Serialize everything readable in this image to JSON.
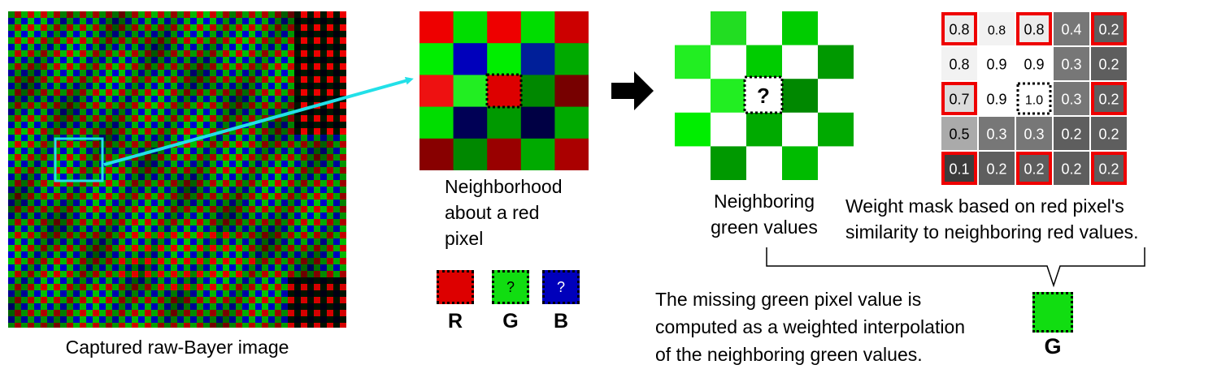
{
  "bayer_image": {
    "caption": "Captured raw-Bayer image"
  },
  "neighborhood": {
    "caption_lines": [
      "Neighborhood",
      "about a red",
      "pixel"
    ],
    "grid": [
      [
        "#ee0000",
        "#00dd00",
        "#ee0000",
        "#00dd00",
        "#cc0000"
      ],
      [
        "#00ee00",
        "#0000bb",
        "#00ee00",
        "#001f99",
        "#00aa00"
      ],
      [
        "#ee1111",
        "#22ee22",
        "#dd0000",
        "#008800",
        "#770000"
      ],
      [
        "#00dd00",
        "#000055",
        "#009900",
        "#000044",
        "#00aa00"
      ],
      [
        "#880000",
        "#008800",
        "#990000",
        "#00aa00",
        "#aa0000"
      ]
    ],
    "center_cell": [
      2,
      2
    ],
    "swatches": [
      {
        "letter": "R",
        "symbol": "",
        "color": "#dd0000"
      },
      {
        "letter": "G",
        "symbol": "?",
        "color": "#11dd11"
      },
      {
        "letter": "B",
        "symbol": "?",
        "color": "#0000bb"
      }
    ]
  },
  "green_values": {
    "caption_lines": [
      "Neighboring",
      "green values"
    ],
    "unknown_symbol": "?",
    "cells": [
      {
        "row": 0,
        "col": 1,
        "color": "#22dd22"
      },
      {
        "row": 0,
        "col": 3,
        "color": "#00cc00"
      },
      {
        "row": 1,
        "col": 0,
        "color": "#22ee22"
      },
      {
        "row": 1,
        "col": 2,
        "color": "#00cc00"
      },
      {
        "row": 1,
        "col": 4,
        "color": "#009900"
      },
      {
        "row": 2,
        "col": 1,
        "color": "#22ee22"
      },
      {
        "row": 2,
        "col": 3,
        "color": "#008800"
      },
      {
        "row": 3,
        "col": 0,
        "color": "#00ee00"
      },
      {
        "row": 3,
        "col": 2,
        "color": "#00aa00"
      },
      {
        "row": 3,
        "col": 4,
        "color": "#00aa00"
      },
      {
        "row": 4,
        "col": 1,
        "color": "#009900"
      },
      {
        "row": 4,
        "col": 3,
        "color": "#00bb00"
      }
    ]
  },
  "weight_mask": {
    "caption_lines": [
      "Weight mask based on red pixel's",
      "similarity to neighboring red values."
    ],
    "values": [
      [
        "0.8",
        "0.8",
        "0.8",
        "0.4",
        "0.2"
      ],
      [
        "0.8",
        "0.9",
        "0.9",
        "0.3",
        "0.2"
      ],
      [
        "0.7",
        "0.9",
        "1.0",
        "0.3",
        "0.2"
      ],
      [
        "0.5",
        "0.3",
        "0.3",
        "0.2",
        "0.2"
      ],
      [
        "0.1",
        "0.2",
        "0.2",
        "0.2",
        "0.2"
      ]
    ],
    "shades": [
      [
        "#ececec",
        "#f2f2f2",
        "#ececec",
        "#777777",
        "#5e5e5e"
      ],
      [
        "#f2f2f2",
        "#ffffff",
        "#ffffff",
        "#777777",
        "#5e5e5e"
      ],
      [
        "#dcdcdc",
        "#ffffff",
        "#ffffff",
        "#777777",
        "#5e5e5e"
      ],
      [
        "#aaaaaa",
        "#777777",
        "#777777",
        "#5e5e5e",
        "#5e5e5e"
      ],
      [
        "#3c3c3c",
        "#5e5e5e",
        "#5e5e5e",
        "#5e5e5e",
        "#5e5e5e"
      ]
    ],
    "red_outlined": [
      [
        0,
        0
      ],
      [
        0,
        2
      ],
      [
        0,
        4
      ],
      [
        2,
        0
      ],
      [
        2,
        4
      ],
      [
        4,
        0
      ],
      [
        4,
        2
      ],
      [
        4,
        4
      ]
    ],
    "center_cell": [
      2,
      2
    ],
    "outline_color": "#ee0000"
  },
  "result": {
    "text_lines": [
      "The missing green pixel value is",
      "computed as a weighted interpolation",
      "of the neighboring green values."
    ],
    "swatch_color": "#11dd11",
    "swatch_letter": "G"
  },
  "colors": {
    "connector": "#22e0e8",
    "arrow": "#000000",
    "bayer_red": "#ee0000",
    "bayer_green": "#00dd00",
    "bayer_blue": "#0000ee"
  }
}
